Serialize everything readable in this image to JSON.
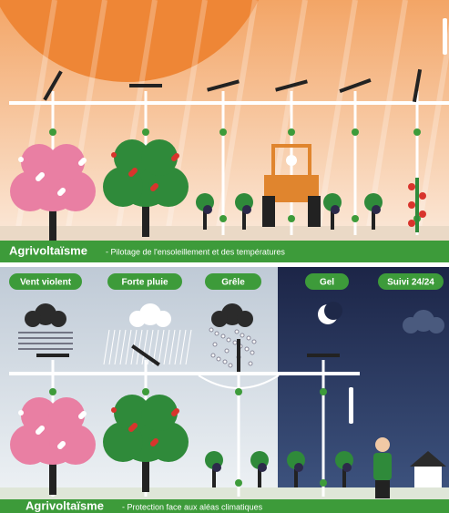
{
  "top_panel": {
    "title": "Agrivoltaïsme",
    "subtitle": "- Pilotage de l'ensoleillement et des températures"
  },
  "bottom_panel": {
    "labels": [
      "Vent violent",
      "Forte pluie",
      "Grêle",
      "Gel",
      "Suivi 24/24"
    ],
    "title": "Agrivoltaïsme",
    "subtitle": "- Protection face aux aléas climatiques"
  }
}
